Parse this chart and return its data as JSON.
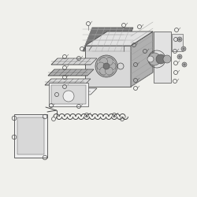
{
  "bg_color": "#f0f0ec",
  "lc": "#4a4a4a",
  "fill_light": "#d8d8d8",
  "fill_mid": "#b0b0b0",
  "fill_dark": "#787878",
  "fill_white": "#efefef",
  "fill_panel": "#e2e2e2"
}
